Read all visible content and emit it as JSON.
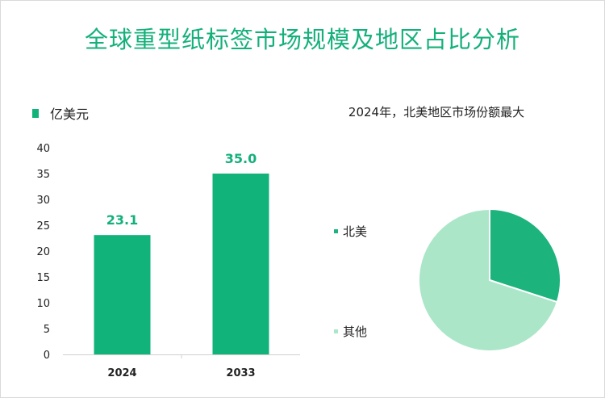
{
  "title": "全球重型纸标签市场规模及地区占比分析",
  "colors": {
    "bar": "#12b37a",
    "pie_na": "#1db37d",
    "pie_other": "#abe6c8",
    "accent": "#14b07a"
  },
  "chart_data": [
    {
      "type": "bar",
      "unit_label": "亿美元",
      "categories": [
        "2024",
        "2033"
      ],
      "values": [
        23.1,
        35.0
      ],
      "data_labels": [
        "23.1",
        "35.0"
      ],
      "ylim": [
        0,
        40
      ],
      "yticks": [
        "0",
        "5",
        "10",
        "15",
        "20",
        "25",
        "30",
        "35",
        "40"
      ]
    },
    {
      "type": "pie",
      "title": "2024年，北美地区市场份额最大",
      "labels": [
        "北美",
        "其他"
      ],
      "values": [
        30,
        70
      ]
    }
  ]
}
